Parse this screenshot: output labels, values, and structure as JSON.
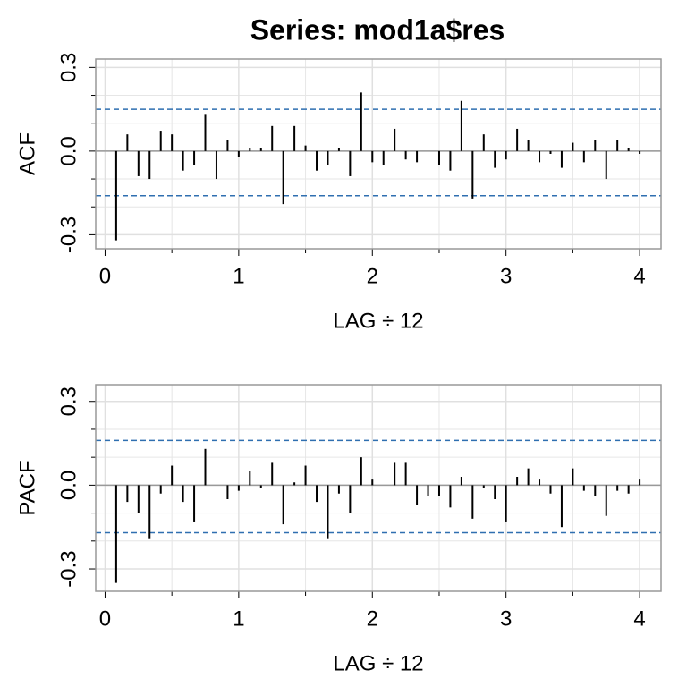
{
  "chart_data": [
    {
      "type": "bar",
      "title": "Series:  mod1a$res",
      "ylabel": "ACF",
      "xlabel": "LAG ÷ 12",
      "x": [
        0.0833,
        0.1667,
        0.25,
        0.3333,
        0.4167,
        0.5,
        0.5833,
        0.6667,
        0.75,
        0.8333,
        0.9167,
        1,
        1.0833,
        1.1667,
        1.25,
        1.3333,
        1.4167,
        1.5,
        1.5833,
        1.6667,
        1.75,
        1.8333,
        1.9167,
        2,
        2.0833,
        2.1667,
        2.25,
        2.3333,
        2.4167,
        2.5,
        2.5833,
        2.6667,
        2.75,
        2.8333,
        2.9167,
        3,
        3.0833,
        3.1667,
        3.25,
        3.3333,
        3.4167,
        3.5,
        3.5833,
        3.6667,
        3.75,
        3.8333,
        3.9167,
        4
      ],
      "values": [
        -0.32,
        0.06,
        -0.09,
        -0.1,
        0.07,
        0.06,
        -0.07,
        -0.05,
        0.13,
        -0.1,
        0.04,
        -0.02,
        0.01,
        0.01,
        0.09,
        -0.19,
        0.09,
        0.02,
        -0.07,
        -0.05,
        0.01,
        -0.09,
        0.21,
        -0.04,
        -0.05,
        0.08,
        -0.03,
        -0.04,
        0,
        -0.05,
        -0.07,
        0.18,
        -0.17,
        0.06,
        -0.06,
        -0.03,
        0.08,
        0.04,
        -0.04,
        -0.01,
        -0.06,
        0.03,
        -0.04,
        0.04,
        -0.1,
        0.04,
        0.01,
        -0.01
      ],
      "color": "#000000",
      "ci": [
        -0.16,
        0.15
      ],
      "ci_color": "#2f6fb0",
      "xlim": [
        -0.07,
        4.16
      ],
      "xticks": [
        0,
        1,
        2,
        3,
        4
      ],
      "ylim": [
        -0.35,
        0.33
      ],
      "yticks": [
        {
          "value": -0.3,
          "label": "-0.3"
        },
        {
          "value": 0,
          "label": "0.0"
        },
        {
          "value": 0.3,
          "label": "0.3"
        }
      ],
      "grid": true
    },
    {
      "type": "bar",
      "ylabel": "PACF",
      "xlabel": "LAG ÷ 12",
      "x": [
        0.0833,
        0.1667,
        0.25,
        0.3333,
        0.4167,
        0.5,
        0.5833,
        0.6667,
        0.75,
        0.8333,
        0.9167,
        1,
        1.0833,
        1.1667,
        1.25,
        1.3333,
        1.4167,
        1.5,
        1.5833,
        1.6667,
        1.75,
        1.8333,
        1.9167,
        2,
        2.0833,
        2.1667,
        2.25,
        2.3333,
        2.4167,
        2.5,
        2.5833,
        2.6667,
        2.75,
        2.8333,
        2.9167,
        3,
        3.0833,
        3.1667,
        3.25,
        3.3333,
        3.4167,
        3.5,
        3.5833,
        3.6667,
        3.75,
        3.8333,
        3.9167,
        4
      ],
      "values": [
        -0.35,
        -0.06,
        -0.1,
        -0.19,
        -0.03,
        0.07,
        -0.06,
        -0.13,
        0.13,
        0,
        -0.05,
        -0.02,
        0.05,
        -0.01,
        0.08,
        -0.14,
        0.01,
        0.07,
        -0.06,
        -0.19,
        -0.03,
        -0.1,
        0.1,
        0.02,
        0,
        0.08,
        0.08,
        -0.07,
        -0.04,
        -0.04,
        -0.08,
        0.03,
        -0.12,
        -0.01,
        -0.05,
        -0.13,
        0.03,
        0.06,
        0.02,
        -0.03,
        -0.15,
        0.06,
        -0.02,
        -0.04,
        -0.11,
        -0.02,
        -0.03,
        0.02
      ],
      "color": "#000000",
      "ci": [
        -0.17,
        0.16
      ],
      "ci_color": "#2f6fb0",
      "xlim": [
        -0.07,
        4.16
      ],
      "xticks": [
        0,
        1,
        2,
        3,
        4
      ],
      "ylim": [
        -0.38,
        0.36
      ],
      "yticks": [
        {
          "value": -0.3,
          "label": "-0.3"
        },
        {
          "value": 0,
          "label": "0.0"
        },
        {
          "value": 0.3,
          "label": "0.3"
        }
      ],
      "grid": true
    }
  ]
}
